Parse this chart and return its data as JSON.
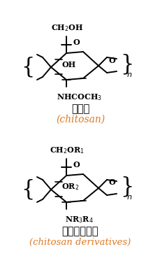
{
  "bg_color": "#ffffff",
  "fig_width": 2.3,
  "fig_height": 3.66,
  "dpi": 100,
  "orange_color": "#e07820",
  "struct1": {
    "label_cn": "壳聚糖",
    "label_en": "(chitosan)",
    "ch2_label": "CH$_2$OH",
    "o_ring_label": "O",
    "oh_label": "OH",
    "o_bridge_label": "O",
    "sub_label": "NHCOCH$_3$"
  },
  "struct2": {
    "label_cn": "壳聚糖衍生物",
    "label_en": "(chitosan derivatives)",
    "ch2_label": "CH$_2$OR$_1$",
    "o_ring_label": "O",
    "or2_label": "OR$_2$",
    "o_bridge_label": "O",
    "sub_label": "NR$_3$R$_4$"
  }
}
